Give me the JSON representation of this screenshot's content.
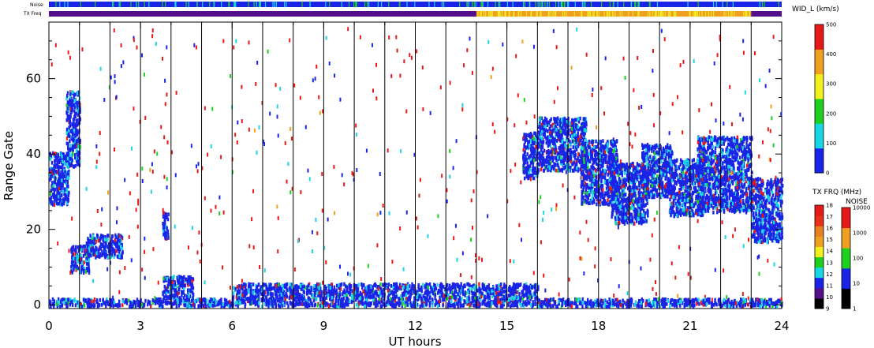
{
  "chart_data": {
    "type": "heatmap",
    "title": "",
    "xlabel": "UT hours",
    "ylabel": "Range Gate",
    "xlim": [
      0,
      24
    ],
    "ylim": [
      -1,
      75
    ],
    "x_ticks": [
      0,
      3,
      6,
      9,
      12,
      15,
      18,
      21,
      24
    ],
    "y_ticks": [
      0,
      20,
      40,
      60
    ],
    "hour_lines": [
      1,
      2,
      3,
      4,
      5,
      6,
      7,
      8,
      9,
      10,
      11,
      12,
      13,
      14,
      15,
      16,
      17,
      18,
      19,
      20,
      21,
      22,
      23
    ],
    "colors": {
      "blue": "#1a24e6",
      "cyan": "#19d6e6",
      "red": "#e61919",
      "green": "#20d020",
      "yellow": "#f0f020",
      "orange": "#f0a020",
      "purple": "#54108a",
      "black": "#000000"
    },
    "blocks": [
      {
        "x0": 0.0,
        "x1": 0.65,
        "g0": 27,
        "g1": 41,
        "level": "blue"
      },
      {
        "x0": 0.55,
        "x1": 1.0,
        "g0": 37,
        "g1": 57,
        "level": "blue"
      },
      {
        "x0": 0.7,
        "x1": 1.3,
        "g0": 9,
        "g1": 16,
        "level": "blue"
      },
      {
        "x0": 1.2,
        "x1": 2.4,
        "g0": 13,
        "g1": 19,
        "level": "blue"
      },
      {
        "x0": 3.7,
        "x1": 4.7,
        "g0": 2,
        "g1": 8,
        "level": "blue"
      },
      {
        "x0": 3.7,
        "x1": 3.9,
        "g0": 18,
        "g1": 25,
        "level": "blue"
      },
      {
        "x0": 15.5,
        "x1": 16.0,
        "g0": 34,
        "g1": 46,
        "level": "blue"
      },
      {
        "x0": 16.0,
        "x1": 17.6,
        "g0": 36,
        "g1": 50,
        "level": "blue"
      },
      {
        "x0": 17.4,
        "x1": 18.6,
        "g0": 27,
        "g1": 44,
        "level": "blue"
      },
      {
        "x0": 18.4,
        "x1": 19.6,
        "g0": 22,
        "g1": 38,
        "level": "blue"
      },
      {
        "x0": 19.4,
        "x1": 20.4,
        "g0": 29,
        "g1": 43,
        "level": "blue"
      },
      {
        "x0": 20.3,
        "x1": 21.4,
        "g0": 24,
        "g1": 39,
        "level": "blue"
      },
      {
        "x0": 21.2,
        "x1": 23.0,
        "g0": 25,
        "g1": 45,
        "level": "blue"
      },
      {
        "x0": 23.0,
        "x1": 24.0,
        "g0": 17,
        "g1": 34,
        "level": "blue"
      },
      {
        "x0": 0.0,
        "x1": 24.0,
        "g0": 0,
        "g1": 2,
        "level": "blue"
      },
      {
        "x0": 6.0,
        "x1": 16.0,
        "g0": 2,
        "g1": 6,
        "level": "blue"
      }
    ],
    "velocity_colorbar": {
      "title": "WID_L (km/s)",
      "ticks": [
        "0",
        "100",
        "200",
        "300",
        "400",
        "500"
      ],
      "colors": [
        "#1a24e6",
        "#19d6e6",
        "#20d020",
        "#f0f020",
        "#f0a020",
        "#e61919"
      ]
    },
    "txfreq_colorbar": {
      "title": "TX FRQ (MHz)",
      "ticks": [
        "9",
        "10",
        "11",
        "12",
        "13",
        "14",
        "15",
        "16",
        "17",
        "18"
      ],
      "colors": [
        "#000000",
        "#54108a",
        "#1a24e6",
        "#19d6e6",
        "#20d020",
        "#f0f020",
        "#f0a020",
        "#e68020",
        "#e63019",
        "#e61919"
      ]
    },
    "noise_colorbar": {
      "title": "NOISE",
      "ticks": [
        "1",
        "10",
        "100",
        "1000",
        "10000"
      ],
      "colors": [
        "#000000",
        "#1a24e6",
        "#20d020",
        "#f0a020",
        "#e61919"
      ]
    },
    "strips": {
      "noise_label": "Noise",
      "txfreq_label": "TX Freq",
      "txfreq_segments": [
        {
          "x0": 0.0,
          "x1": 14.0,
          "color": "purple"
        },
        {
          "x0": 14.0,
          "x1": 23.0,
          "color": "orange"
        },
        {
          "x0": 23.0,
          "x1": 24.0,
          "color": "purple"
        }
      ]
    }
  }
}
